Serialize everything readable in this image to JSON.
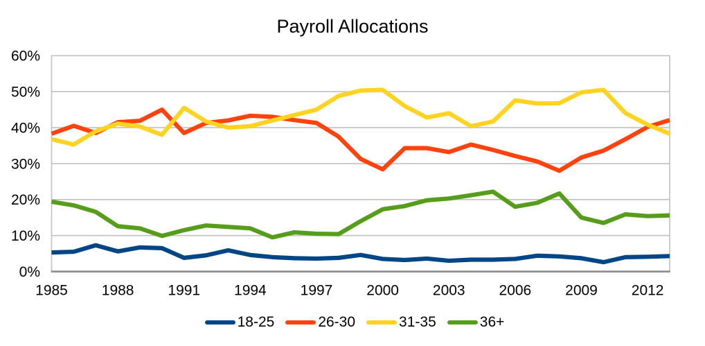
{
  "chart_data": {
    "type": "line",
    "title": "Payroll Allocations",
    "x": [
      1985,
      1986,
      1987,
      1988,
      1989,
      1990,
      1991,
      1992,
      1993,
      1994,
      1995,
      1996,
      1997,
      1998,
      1999,
      2000,
      2001,
      2002,
      2003,
      2004,
      2005,
      2006,
      2007,
      2008,
      2009,
      2010,
      2011,
      2012,
      2013
    ],
    "x_tick_labels": [
      "1985",
      "1988",
      "1991",
      "1994",
      "1997",
      "2000",
      "2003",
      "2006",
      "2009",
      "2012"
    ],
    "x_tick_years": [
      1985,
      1988,
      1991,
      1994,
      1997,
      2000,
      2003,
      2006,
      2009,
      2012
    ],
    "y_tick_labels": [
      "0%",
      "10%",
      "20%",
      "30%",
      "40%",
      "50%",
      "60%"
    ],
    "y_tick_values": [
      0,
      10,
      20,
      30,
      40,
      50,
      60
    ],
    "ylim": [
      0,
      60
    ],
    "y_unit": "percent",
    "grid": "horizontal",
    "legend_position": "bottom",
    "series": [
      {
        "name": "18-25",
        "color": "#004586",
        "values": [
          5.3,
          5.5,
          7.3,
          5.6,
          6.7,
          6.5,
          3.8,
          4.5,
          5.9,
          4.6,
          4.0,
          3.7,
          3.6,
          3.8,
          4.6,
          3.5,
          3.2,
          3.6,
          3.0,
          3.3,
          3.3,
          3.5,
          4.4,
          4.2,
          3.7,
          2.6,
          4.0,
          4.1,
          4.3
        ]
      },
      {
        "name": "26-30",
        "color": "#ff420e",
        "values": [
          38.3,
          40.5,
          38.5,
          41.5,
          41.9,
          45.0,
          38.5,
          41.3,
          42.0,
          43.3,
          43.0,
          42.1,
          41.3,
          37.5,
          31.3,
          28.4,
          34.3,
          34.3,
          33.2,
          35.3,
          33.8,
          32.1,
          30.6,
          28.0,
          31.7,
          33.6,
          36.8,
          40.2,
          42.1
        ]
      },
      {
        "name": "31-35",
        "color": "#ffd320",
        "values": [
          36.8,
          35.3,
          39.0,
          41.1,
          40.3,
          38.0,
          45.5,
          41.7,
          40.0,
          40.4,
          42.0,
          43.5,
          45.0,
          48.8,
          50.3,
          50.5,
          46.0,
          42.8,
          44.0,
          40.4,
          41.7,
          47.6,
          46.7,
          46.8,
          49.8,
          50.5,
          44.0,
          40.8,
          38.3
        ]
      },
      {
        "name": "36+",
        "color": "#579d1c",
        "values": [
          19.4,
          18.4,
          16.6,
          12.6,
          12.0,
          9.9,
          11.5,
          12.8,
          12.4,
          12.0,
          9.5,
          10.9,
          10.5,
          10.4,
          14.0,
          17.3,
          18.2,
          19.8,
          20.3,
          21.2,
          22.2,
          18.0,
          19.1,
          21.7,
          15.0,
          13.5,
          15.9,
          15.4,
          15.6
        ]
      }
    ],
    "colors": {
      "background": "#ffffff",
      "gridline": "#c0c0c0",
      "axis_line": "#8f8f8f",
      "text": "#000000"
    }
  }
}
